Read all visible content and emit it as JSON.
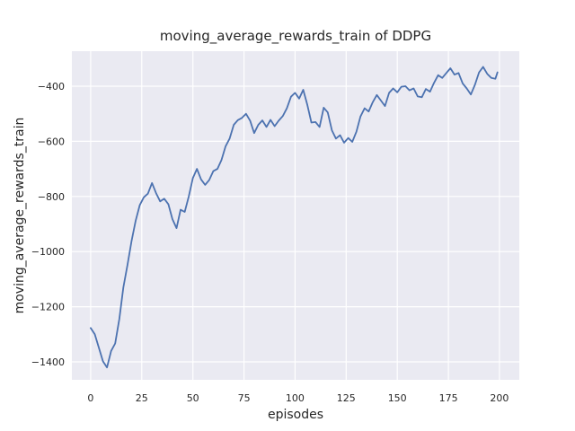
{
  "chart_data": {
    "type": "line",
    "title": "moving_average_rewards_train of DDPG",
    "xlabel": "episodes",
    "ylabel": "moving_average_rewards_train",
    "xticks": [
      0,
      25,
      50,
      75,
      100,
      125,
      150,
      175,
      200
    ],
    "yticks": [
      -400,
      -600,
      -800,
      -1000,
      -1200,
      -1400
    ],
    "xlim": [
      -9.2,
      209.7
    ],
    "ylim": [
      -1465,
      -273
    ],
    "grid": true,
    "legend": "none",
    "bg_color": "#eaeaf2",
    "grid_color": "#ffffff",
    "line_color": "#4c72b0",
    "text_color": "#262626",
    "x": [
      0,
      2,
      4,
      6,
      8,
      10,
      12,
      14,
      16,
      18,
      20,
      22,
      24,
      26,
      28,
      30,
      32,
      34,
      36,
      38,
      40,
      42,
      44,
      46,
      48,
      50,
      52,
      54,
      56,
      58,
      60,
      62,
      64,
      66,
      68,
      70,
      72,
      74,
      76,
      78,
      80,
      82,
      84,
      86,
      88,
      90,
      92,
      94,
      96,
      98,
      100,
      102,
      104,
      106,
      108,
      110,
      112,
      114,
      116,
      118,
      120,
      122,
      124,
      126,
      128,
      130,
      132,
      134,
      136,
      138,
      140,
      142,
      144,
      146,
      148,
      150,
      152,
      154,
      156,
      158,
      160,
      162,
      164,
      166,
      168,
      170,
      172,
      174,
      176,
      178,
      180,
      182,
      184,
      186,
      188,
      190,
      192,
      194,
      196,
      198,
      199
    ],
    "y": [
      -1277,
      -1300,
      -1348,
      -1398,
      -1420,
      -1360,
      -1333,
      -1245,
      -1130,
      -1048,
      -962,
      -888,
      -832,
      -803,
      -790,
      -751,
      -788,
      -818,
      -808,
      -828,
      -882,
      -915,
      -848,
      -856,
      -800,
      -733,
      -700,
      -738,
      -758,
      -740,
      -708,
      -700,
      -668,
      -618,
      -590,
      -540,
      -523,
      -515,
      -500,
      -525,
      -570,
      -540,
      -524,
      -548,
      -522,
      -545,
      -525,
      -508,
      -480,
      -438,
      -424,
      -445,
      -413,
      -468,
      -532,
      -530,
      -548,
      -478,
      -495,
      -560,
      -590,
      -578,
      -605,
      -588,
      -602,
      -565,
      -510,
      -480,
      -492,
      -458,
      -432,
      -452,
      -472,
      -424,
      -408,
      -422,
      -402,
      -400,
      -415,
      -408,
      -437,
      -440,
      -410,
      -420,
      -388,
      -360,
      -370,
      -352,
      -335,
      -358,
      -352,
      -390,
      -408,
      -430,
      -395,
      -350,
      -330,
      -355,
      -370,
      -373,
      -350
    ]
  }
}
